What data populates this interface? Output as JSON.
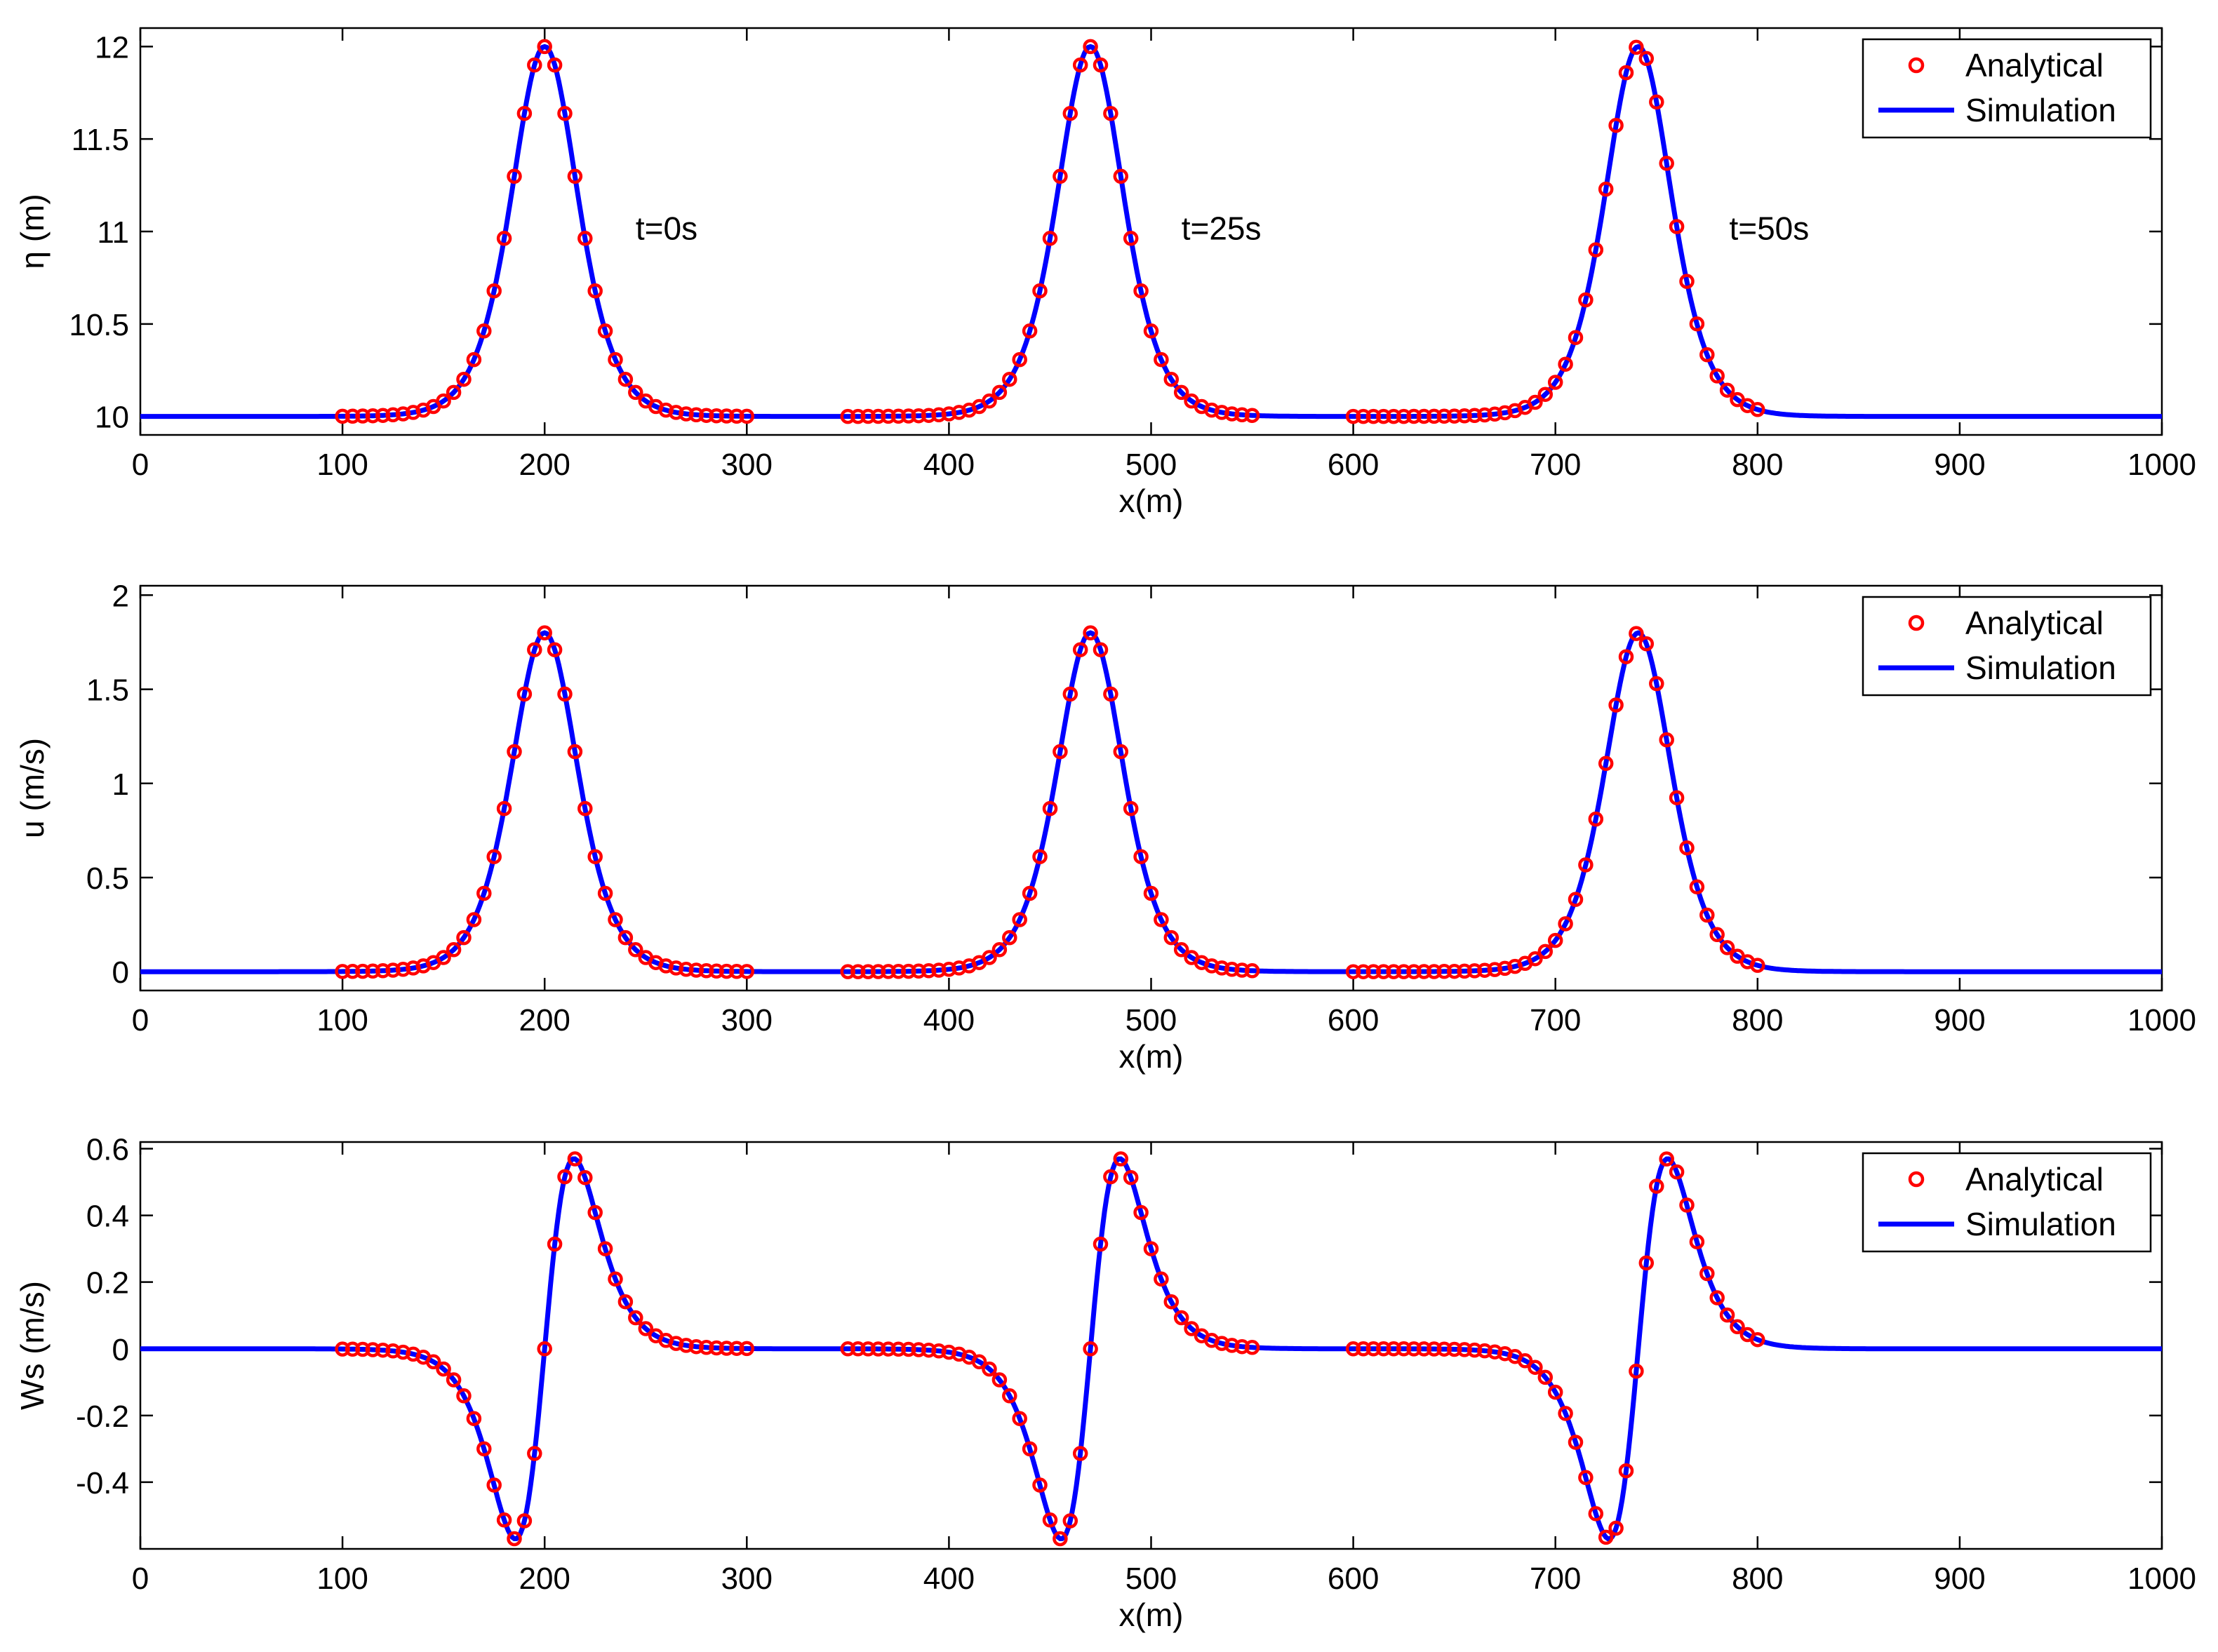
{
  "colors": {
    "analytical": "#ff0000",
    "simulation": "#0000ff",
    "axes": "#000000",
    "background": "#ffffff"
  },
  "legend": {
    "analytical": "Analytical",
    "simulation": "Simulation",
    "position": "top-right"
  },
  "chart_data": [
    {
      "type": "line",
      "title": "",
      "xlabel": "x(m)",
      "ylabel": "η (m)",
      "xlim": [
        0,
        1000
      ],
      "ylim": [
        9.9,
        12.1
      ],
      "xticks": [
        0,
        100,
        200,
        300,
        400,
        500,
        600,
        700,
        800,
        900,
        1000
      ],
      "xtick_labels": [
        "0",
        "100",
        "200",
        "300",
        "400",
        "500",
        "600",
        "700",
        "800",
        "900",
        "1000"
      ],
      "yticks": [
        10,
        10.5,
        11,
        11.5,
        12
      ],
      "ytick_labels": [
        "10",
        "10.5",
        "11",
        "11.5",
        "12"
      ],
      "profile": {
        "kind": "soliton",
        "baseline": 10,
        "amplitude": 2,
        "k": 0.0454
      },
      "snapshots": [
        {
          "label": "t=0s",
          "center": 200,
          "analytical_range": [
            100,
            300
          ]
        },
        {
          "label": "t=25s",
          "center": 470,
          "analytical_range": [
            350,
            550
          ]
        },
        {
          "label": "t=50s",
          "center": 741,
          "analytical_range": [
            600,
            800
          ]
        }
      ],
      "analytical_step": 5,
      "series": [
        {
          "name": "Analytical",
          "style": "markers-open-circle"
        },
        {
          "name": "Simulation",
          "style": "solid-line"
        }
      ],
      "grid": false,
      "legend_position": "top-right"
    },
    {
      "type": "line",
      "title": "",
      "xlabel": "x(m)",
      "ylabel": "u (m/s)",
      "xlim": [
        0,
        1000
      ],
      "ylim": [
        -0.1,
        2.05
      ],
      "xticks": [
        0,
        100,
        200,
        300,
        400,
        500,
        600,
        700,
        800,
        900,
        1000
      ],
      "xtick_labels": [
        "0",
        "100",
        "200",
        "300",
        "400",
        "500",
        "600",
        "700",
        "800",
        "900",
        "1000"
      ],
      "yticks": [
        0,
        0.5,
        1,
        1.5,
        2
      ],
      "ytick_labels": [
        "0",
        "0.5",
        "1",
        "1.5",
        "2"
      ],
      "profile": {
        "kind": "soliton",
        "baseline": 0,
        "amplitude": 1.8,
        "k": 0.0454
      },
      "snapshots": [
        {
          "label": "",
          "center": 200,
          "analytical_range": [
            100,
            300
          ]
        },
        {
          "label": "",
          "center": 470,
          "analytical_range": [
            350,
            550
          ]
        },
        {
          "label": "",
          "center": 741,
          "analytical_range": [
            600,
            800
          ]
        }
      ],
      "analytical_step": 5,
      "series": [
        {
          "name": "Analytical",
          "style": "markers-open-circle"
        },
        {
          "name": "Simulation",
          "style": "solid-line"
        }
      ],
      "grid": false,
      "legend_position": "top-right"
    },
    {
      "type": "line",
      "title": "",
      "xlabel": "x(m)",
      "ylabel": "Ws (m/s)",
      "xlim": [
        0,
        1000
      ],
      "ylim": [
        -0.6,
        0.62
      ],
      "xticks": [
        0,
        100,
        200,
        300,
        400,
        500,
        600,
        700,
        800,
        900,
        1000
      ],
      "xtick_labels": [
        "0",
        "100",
        "200",
        "300",
        "400",
        "500",
        "600",
        "700",
        "800",
        "900",
        "1000"
      ],
      "yticks": [
        -0.4,
        -0.2,
        0,
        0.2,
        0.4,
        0.6
      ],
      "ytick_labels": [
        "-0.4",
        "-0.2",
        "0",
        "0.2",
        "0.4",
        "0.6"
      ],
      "profile": {
        "kind": "soliton-derivative",
        "baseline": 0,
        "amplitude": 0.57,
        "k": 0.0454
      },
      "snapshots": [
        {
          "label": "",
          "center": 200,
          "analytical_range": [
            100,
            300
          ]
        },
        {
          "label": "",
          "center": 470,
          "analytical_range": [
            350,
            550
          ]
        },
        {
          "label": "",
          "center": 741,
          "analytical_range": [
            600,
            800
          ]
        }
      ],
      "analytical_step": 5,
      "series": [
        {
          "name": "Analytical",
          "style": "markers-open-circle"
        },
        {
          "name": "Simulation",
          "style": "solid-line"
        }
      ],
      "grid": false,
      "legend_position": "top-right"
    }
  ]
}
